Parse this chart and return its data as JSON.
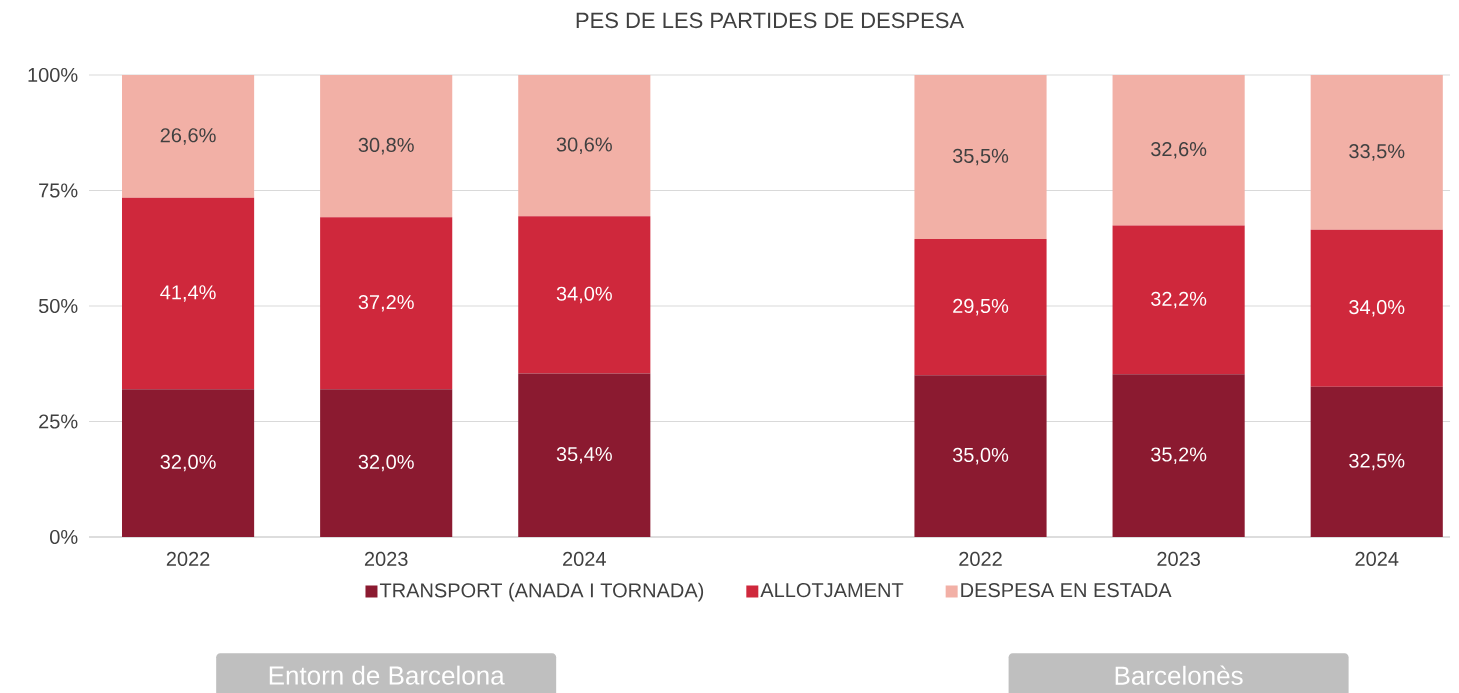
{
  "chart_data": {
    "type": "bar",
    "stacked": true,
    "title": "PES DE LES PARTIDES DE DESPESA",
    "categories": [
      "2022",
      "2023",
      "2024",
      null,
      "2022",
      "2023",
      "2024"
    ],
    "series": [
      {
        "name": "TRANSPORT (ANADA I TORNADA)",
        "color": "#8b1a30",
        "values": [
          32.0,
          32.0,
          35.4,
          null,
          35.0,
          35.2,
          32.5
        ],
        "value_labels": [
          "32,0%",
          "32,0%",
          "35,4%",
          null,
          "35,0%",
          "35,2%",
          "32,5%"
        ]
      },
      {
        "name": "ALLOTJAMENT",
        "color": "#cf283c",
        "values": [
          41.4,
          37.2,
          34.0,
          null,
          29.5,
          32.2,
          34.0
        ],
        "value_labels": [
          "41,4%",
          "37,2%",
          "34,0%",
          null,
          "29,5%",
          "32,2%",
          "34,0%"
        ]
      },
      {
        "name": "DESPESA EN ESTADA",
        "color": "#f2b0a6",
        "values": [
          26.6,
          30.8,
          30.6,
          null,
          35.5,
          32.6,
          33.5
        ],
        "value_labels": [
          "26,6%",
          "30,8%",
          "30,6%",
          null,
          "35,5%",
          "32,6%",
          "33,5%"
        ]
      }
    ],
    "ylim": [
      0,
      100
    ],
    "yticks": [
      {
        "value": 0,
        "label": "0%"
      },
      {
        "value": 25,
        "label": "25%"
      },
      {
        "value": 50,
        "label": "50%"
      },
      {
        "value": 75,
        "label": "75%"
      },
      {
        "value": 100,
        "label": "100%"
      }
    ],
    "grid": "y",
    "legend": "bottom",
    "annotations": [
      "Entorn de Barcelona",
      "Barcelonès"
    ]
  }
}
